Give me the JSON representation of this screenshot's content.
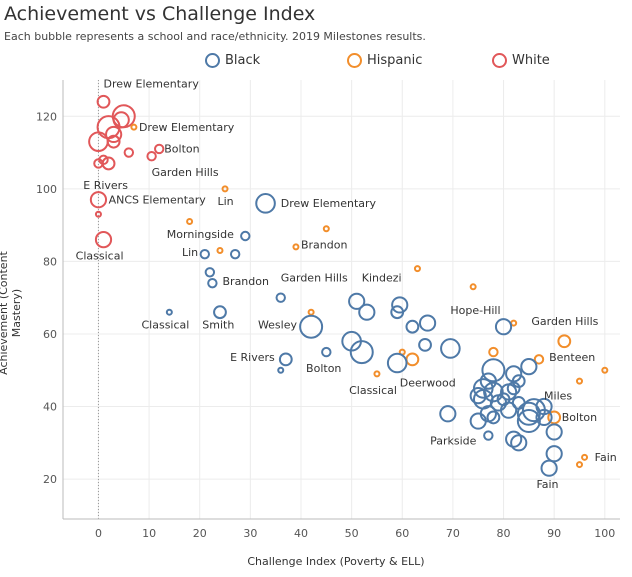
{
  "header": {
    "title": "Achievement vs Challenge Index",
    "subtitle": "Each bubble represents a school and race/ethnicity. 2019 Milestones results."
  },
  "legend": [
    {
      "label": "Black",
      "color": "#4e79a7"
    },
    {
      "label": "Hispanic",
      "color": "#f28e2b"
    },
    {
      "label": "White",
      "color": "#e15759"
    }
  ],
  "chart_data": {
    "type": "scatter",
    "title": "Achievement vs Challenge Index",
    "subtitle": "Each bubble represents a school and race/ethnicity. 2019 Milestones results.",
    "xlabel": "Challenge Index (Poverty & ELL)",
    "ylabel": "Achievement (Content Mastery)",
    "xlim": [
      -7,
      103
    ],
    "ylim": [
      9,
      130
    ],
    "xticks": [
      0,
      10,
      20,
      30,
      40,
      50,
      60,
      70,
      80,
      90,
      100
    ],
    "yticks": [
      20,
      40,
      60,
      80,
      100,
      120
    ],
    "grid": true,
    "legend_position": "top",
    "series": [
      {
        "name": "White",
        "color": "#e15759",
        "points": [
          {
            "x": 1,
            "y": 124,
            "s": 3
          },
          {
            "x": 5,
            "y": 120,
            "s": 6
          },
          {
            "x": 4.5,
            "y": 119,
            "s": 4
          },
          {
            "x": 2,
            "y": 117,
            "s": 6
          },
          {
            "x": 3,
            "y": 115,
            "s": 4
          },
          {
            "x": 3,
            "y": 113,
            "s": 3
          },
          {
            "x": 0,
            "y": 113,
            "s": 5
          },
          {
            "x": 12,
            "y": 111,
            "s": 2
          },
          {
            "x": 6,
            "y": 110,
            "s": 2
          },
          {
            "x": 10.5,
            "y": 109,
            "s": 2
          },
          {
            "x": 1,
            "y": 108,
            "s": 2
          },
          {
            "x": 2,
            "y": 107,
            "s": 3
          },
          {
            "x": 0,
            "y": 107,
            "s": 2
          },
          {
            "x": 0,
            "y": 97,
            "s": 4
          },
          {
            "x": 0,
            "y": 93,
            "s": 1
          },
          {
            "x": 1,
            "y": 86,
            "s": 4
          }
        ]
      },
      {
        "name": "Hispanic",
        "color": "#f28e2b",
        "points": [
          {
            "x": 7,
            "y": 117,
            "s": 1
          },
          {
            "x": 25,
            "y": 100,
            "s": 1
          },
          {
            "x": 18,
            "y": 91,
            "s": 1
          },
          {
            "x": 45,
            "y": 89,
            "s": 1
          },
          {
            "x": 39,
            "y": 84,
            "s": 1
          },
          {
            "x": 24,
            "y": 83,
            "s": 1
          },
          {
            "x": 63,
            "y": 78,
            "s": 1
          },
          {
            "x": 74,
            "y": 73,
            "s": 1
          },
          {
            "x": 42,
            "y": 66,
            "s": 1
          },
          {
            "x": 82,
            "y": 63,
            "s": 1
          },
          {
            "x": 92,
            "y": 58,
            "s": 3
          },
          {
            "x": 78,
            "y": 55,
            "s": 2
          },
          {
            "x": 60,
            "y": 55,
            "s": 1
          },
          {
            "x": 62,
            "y": 53,
            "s": 3
          },
          {
            "x": 87,
            "y": 53,
            "s": 2
          },
          {
            "x": 100,
            "y": 50,
            "s": 1
          },
          {
            "x": 55,
            "y": 49,
            "s": 1
          },
          {
            "x": 95,
            "y": 47,
            "s": 1
          },
          {
            "x": 90,
            "y": 37,
            "s": 3
          },
          {
            "x": 96,
            "y": 26,
            "s": 1
          },
          {
            "x": 95,
            "y": 24,
            "s": 1
          }
        ]
      },
      {
        "name": "Black",
        "color": "#4e79a7",
        "points": [
          {
            "x": 33,
            "y": 96,
            "s": 5
          },
          {
            "x": 29,
            "y": 87,
            "s": 2
          },
          {
            "x": 21,
            "y": 82,
            "s": 2
          },
          {
            "x": 27,
            "y": 82,
            "s": 2
          },
          {
            "x": 22,
            "y": 77,
            "s": 2
          },
          {
            "x": 22.5,
            "y": 74,
            "s": 2
          },
          {
            "x": 36,
            "y": 70,
            "s": 2
          },
          {
            "x": 14,
            "y": 66,
            "s": 1
          },
          {
            "x": 24,
            "y": 66,
            "s": 3
          },
          {
            "x": 51,
            "y": 69,
            "s": 4
          },
          {
            "x": 53,
            "y": 66,
            "s": 4
          },
          {
            "x": 59.5,
            "y": 68,
            "s": 4
          },
          {
            "x": 59,
            "y": 66,
            "s": 3
          },
          {
            "x": 42,
            "y": 62,
            "s": 6
          },
          {
            "x": 62,
            "y": 62,
            "s": 3
          },
          {
            "x": 65,
            "y": 63,
            "s": 4
          },
          {
            "x": 80,
            "y": 62,
            "s": 4
          },
          {
            "x": 50,
            "y": 58,
            "s": 5
          },
          {
            "x": 52,
            "y": 55,
            "s": 6
          },
          {
            "x": 64.5,
            "y": 57,
            "s": 3
          },
          {
            "x": 69.5,
            "y": 56,
            "s": 5
          },
          {
            "x": 45,
            "y": 55,
            "s": 2
          },
          {
            "x": 37,
            "y": 53,
            "s": 3
          },
          {
            "x": 36,
            "y": 50,
            "s": 1
          },
          {
            "x": 59,
            "y": 52,
            "s": 5
          },
          {
            "x": 78,
            "y": 50,
            "s": 6
          },
          {
            "x": 82,
            "y": 49,
            "s": 4
          },
          {
            "x": 85,
            "y": 51,
            "s": 4
          },
          {
            "x": 77,
            "y": 47,
            "s": 4
          },
          {
            "x": 83,
            "y": 47,
            "s": 3
          },
          {
            "x": 76,
            "y": 45,
            "s": 5
          },
          {
            "x": 78,
            "y": 44,
            "s": 5
          },
          {
            "x": 81,
            "y": 44,
            "s": 4
          },
          {
            "x": 82,
            "y": 45,
            "s": 3
          },
          {
            "x": 75,
            "y": 43,
            "s": 4
          },
          {
            "x": 76,
            "y": 42,
            "s": 5
          },
          {
            "x": 79,
            "y": 41,
            "s": 4
          },
          {
            "x": 80,
            "y": 42,
            "s": 3
          },
          {
            "x": 83,
            "y": 41,
            "s": 3
          },
          {
            "x": 86,
            "y": 39,
            "s": 6
          },
          {
            "x": 88,
            "y": 40,
            "s": 4
          },
          {
            "x": 85,
            "y": 38,
            "s": 6
          },
          {
            "x": 85,
            "y": 36,
            "s": 6
          },
          {
            "x": 88,
            "y": 37,
            "s": 4
          },
          {
            "x": 81,
            "y": 39,
            "s": 4
          },
          {
            "x": 77,
            "y": 38,
            "s": 4
          },
          {
            "x": 69,
            "y": 38,
            "s": 4
          },
          {
            "x": 75,
            "y": 36,
            "s": 4
          },
          {
            "x": 78,
            "y": 37,
            "s": 3
          },
          {
            "x": 90,
            "y": 33,
            "s": 4
          },
          {
            "x": 77,
            "y": 32,
            "s": 2
          },
          {
            "x": 82,
            "y": 31,
            "s": 4
          },
          {
            "x": 83,
            "y": 30,
            "s": 4
          },
          {
            "x": 90,
            "y": 27,
            "s": 4
          },
          {
            "x": 89,
            "y": 23,
            "s": 4
          }
        ]
      }
    ],
    "annotations": [
      {
        "text": "Drew Elementary",
        "x": 1,
        "y": 128,
        "anchor": "start"
      },
      {
        "text": "Drew Elementary",
        "x": 8,
        "y": 116,
        "anchor": "start"
      },
      {
        "text": "Bolton",
        "x": 13,
        "y": 110,
        "anchor": "start"
      },
      {
        "text": "Garden Hills",
        "x": 10.5,
        "y": 103.5,
        "anchor": "start"
      },
      {
        "text": "E Rivers",
        "x": -3,
        "y": 100,
        "anchor": "start"
      },
      {
        "text": "ANCS Elementary",
        "x": 2,
        "y": 96,
        "anchor": "start"
      },
      {
        "text": "Lin",
        "x": 23.5,
        "y": 95.5,
        "anchor": "start"
      },
      {
        "text": "Drew Elementary",
        "x": 36,
        "y": 95,
        "anchor": "start"
      },
      {
        "text": "Morningside",
        "x": 13.5,
        "y": 86.5,
        "anchor": "start"
      },
      {
        "text": "Brandon",
        "x": 40,
        "y": 83.5,
        "anchor": "start"
      },
      {
        "text": "Lin",
        "x": 16.5,
        "y": 81.5,
        "anchor": "start"
      },
      {
        "text": "Classical",
        "x": -4.5,
        "y": 80.5,
        "anchor": "start"
      },
      {
        "text": "Kindezi",
        "x": 52,
        "y": 74.5,
        "anchor": "start"
      },
      {
        "text": "Garden Hills",
        "x": 36,
        "y": 74.5,
        "anchor": "start"
      },
      {
        "text": "Brandon",
        "x": 24.5,
        "y": 73.5,
        "anchor": "start"
      },
      {
        "text": "Hope-Hill",
        "x": 69.5,
        "y": 65.5,
        "anchor": "start"
      },
      {
        "text": "Garden Hills",
        "x": 85.5,
        "y": 62.5,
        "anchor": "start"
      },
      {
        "text": "Classical",
        "x": 8.5,
        "y": 61.5,
        "anchor": "start"
      },
      {
        "text": "Smith",
        "x": 20.5,
        "y": 61.5,
        "anchor": "start"
      },
      {
        "text": "Wesley",
        "x": 31.5,
        "y": 61.5,
        "anchor": "start"
      },
      {
        "text": "Benteen",
        "x": 89,
        "y": 52.5,
        "anchor": "start"
      },
      {
        "text": "E Rivers",
        "x": 26,
        "y": 52.5,
        "anchor": "start"
      },
      {
        "text": "Bolton",
        "x": 41,
        "y": 49.5,
        "anchor": "start"
      },
      {
        "text": "Deerwood",
        "x": 59.5,
        "y": 45.5,
        "anchor": "start"
      },
      {
        "text": "Classical",
        "x": 49.5,
        "y": 43.5,
        "anchor": "start"
      },
      {
        "text": "Miles",
        "x": 88,
        "y": 42,
        "anchor": "start"
      },
      {
        "text": "Bolton",
        "x": 91.5,
        "y": 36,
        "anchor": "start"
      },
      {
        "text": "Parkside",
        "x": 65.5,
        "y": 29.5,
        "anchor": "start"
      },
      {
        "text": "Fain",
        "x": 98,
        "y": 25,
        "anchor": "start"
      },
      {
        "text": "Fain",
        "x": 86.5,
        "y": 17.5,
        "anchor": "start"
      }
    ]
  },
  "axes": {
    "xlabel": "Challenge Index (Poverty & ELL)",
    "ylabel": "Achievement (Content Mastery)"
  }
}
